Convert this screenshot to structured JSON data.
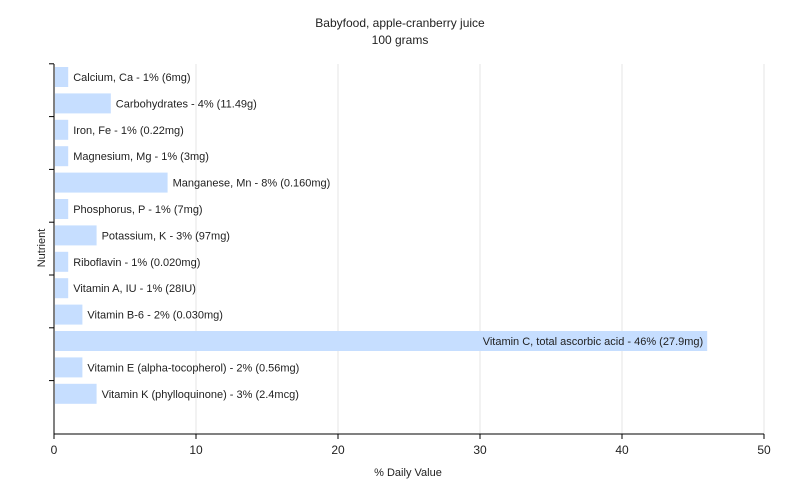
{
  "chart_data": {
    "type": "bar",
    "orientation": "horizontal",
    "title": "Babyfood, apple-cranberry juice",
    "subtitle": "100 grams",
    "xlabel": "% Daily Value",
    "ylabel": "Nutrient",
    "xlim": [
      0,
      50
    ],
    "xticks": [
      0,
      10,
      20,
      30,
      40,
      50
    ],
    "grid": true,
    "bar_color": "#c6deff",
    "categories": [
      "Calcium, Ca",
      "Carbohydrates",
      "Iron, Fe",
      "Magnesium, Mg",
      "Manganese, Mn",
      "Phosphorus, P",
      "Potassium, K",
      "Riboflavin",
      "Vitamin A, IU",
      "Vitamin B-6",
      "Vitamin C, total ascorbic acid",
      "Vitamin E (alpha-tocopherol)",
      "Vitamin K (phylloquinone)"
    ],
    "values": [
      1,
      4,
      1,
      1,
      8,
      1,
      3,
      1,
      1,
      2,
      46,
      2,
      3
    ],
    "labels": [
      "Calcium, Ca - 1% (6mg)",
      "Carbohydrates - 4% (11.49g)",
      "Iron, Fe - 1% (0.22mg)",
      "Magnesium, Mg - 1% (3mg)",
      "Manganese, Mn - 8% (0.160mg)",
      "Phosphorus, P - 1% (7mg)",
      "Potassium, K - 3% (97mg)",
      "Riboflavin - 1% (0.020mg)",
      "Vitamin A, IU - 1% (28IU)",
      "Vitamin B-6 - 2% (0.030mg)",
      "Vitamin C, total ascorbic acid - 46% (27.9mg)",
      "Vitamin E (alpha-tocopherol) - 2% (0.56mg)",
      "Vitamin K (phylloquinone) - 3% (2.4mcg)"
    ]
  }
}
